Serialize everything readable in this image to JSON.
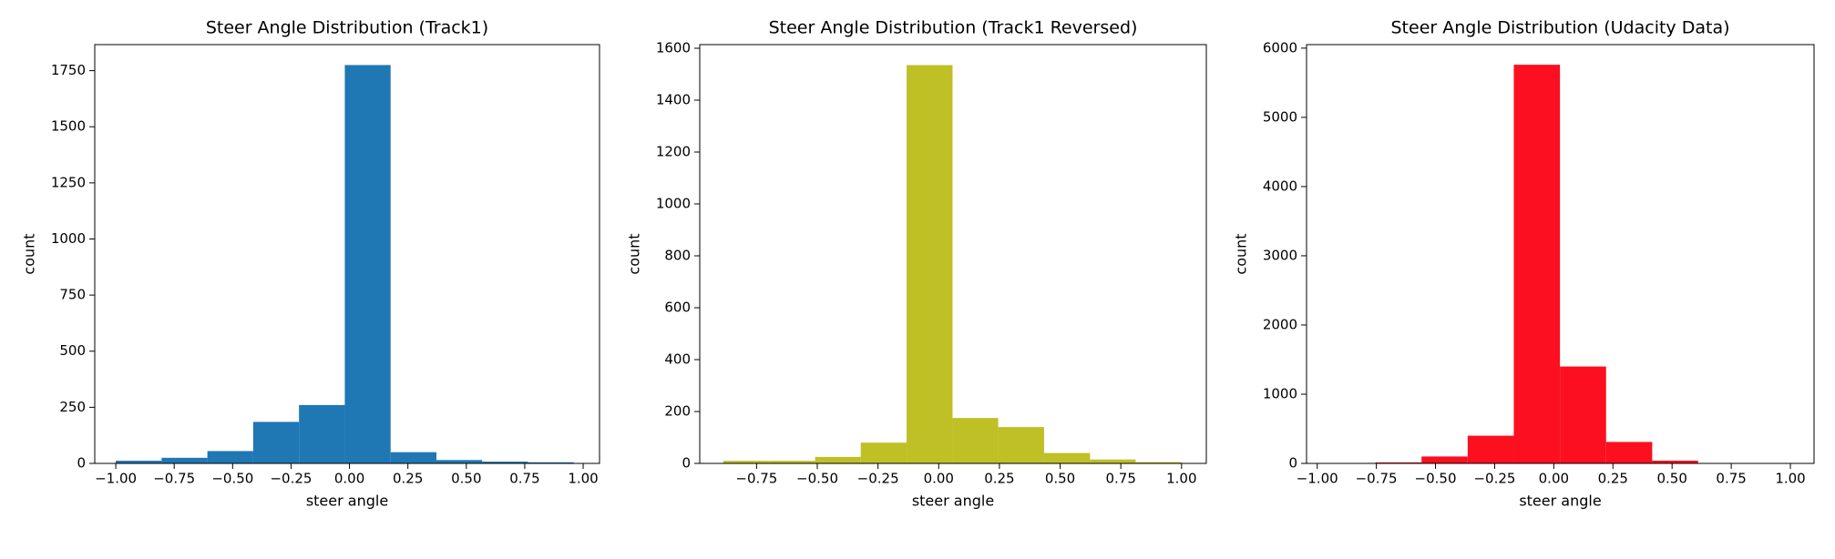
{
  "chart_data": [
    {
      "type": "histogram",
      "title": "Steer Angle Distribution (Track1)",
      "xlabel": "steer angle",
      "ylabel": "count",
      "color": "#1f77b4",
      "bins": [
        -1.0,
        -0.804,
        -0.608,
        -0.412,
        -0.216,
        -0.02,
        0.176,
        0.372,
        0.568,
        0.764,
        0.96
      ],
      "values": [
        12,
        25,
        55,
        185,
        260,
        1775,
        50,
        15,
        8,
        5
      ],
      "xlim": [
        -1.09,
        1.07
      ],
      "ylim": [
        0,
        1866
      ],
      "xticks": [
        {
          "value": -1.0,
          "label": "−1.00"
        },
        {
          "value": -0.75,
          "label": "−0.75"
        },
        {
          "value": -0.5,
          "label": "−0.50"
        },
        {
          "value": -0.25,
          "label": "−0.25"
        },
        {
          "value": 0,
          "label": "0.00"
        },
        {
          "value": 0.25,
          "label": "0.25"
        },
        {
          "value": 0.5,
          "label": "0.50"
        },
        {
          "value": 0.75,
          "label": "0.75"
        },
        {
          "value": 1.0,
          "label": "1.00"
        }
      ],
      "yticks": [
        0,
        250,
        500,
        750,
        1000,
        1250,
        1500,
        1750
      ]
    },
    {
      "type": "histogram",
      "title": "Steer Angle Distribution (Track1 Reversed)",
      "xlabel": "steer angle",
      "ylabel": "count",
      "color": "#bfbf26",
      "bins": [
        -0.887,
        -0.698,
        -0.509,
        -0.321,
        -0.132,
        0.057,
        0.245,
        0.434,
        0.623,
        0.811,
        1.0
      ],
      "values": [
        10,
        10,
        25,
        80,
        1535,
        175,
        140,
        40,
        15,
        5
      ],
      "xlim": [
        -0.984,
        1.102
      ],
      "ylim": [
        0,
        1614
      ],
      "xticks": [
        {
          "value": -0.75,
          "label": "−0.75"
        },
        {
          "value": -0.5,
          "label": "−0.50"
        },
        {
          "value": -0.25,
          "label": "−0.25"
        },
        {
          "value": 0,
          "label": "0.00"
        },
        {
          "value": 0.25,
          "label": "0.25"
        },
        {
          "value": 0.5,
          "label": "0.50"
        },
        {
          "value": 0.75,
          "label": "0.75"
        },
        {
          "value": 1.0,
          "label": "1.00"
        }
      ],
      "yticks": [
        0,
        200,
        400,
        600,
        800,
        1000,
        1200,
        1400,
        1600
      ]
    },
    {
      "type": "histogram",
      "title": "Steer Angle Distribution (Udacity Data)",
      "xlabel": "steer angle",
      "ylabel": "count",
      "color": "#fc0f1e",
      "bins": [
        -0.949,
        -0.754,
        -0.559,
        -0.364,
        -0.169,
        0.026,
        0.221,
        0.416,
        0.61,
        0.805,
        1.0
      ],
      "values": [
        0,
        15,
        100,
        400,
        5760,
        1400,
        310,
        40,
        2,
        1
      ],
      "xlim": [
        -1.045,
        1.1
      ],
      "ylim": [
        0,
        6051
      ],
      "xticks": [
        {
          "value": -1.0,
          "label": "−1.00"
        },
        {
          "value": -0.75,
          "label": "−0.75"
        },
        {
          "value": -0.5,
          "label": "−0.50"
        },
        {
          "value": -0.25,
          "label": "−0.25"
        },
        {
          "value": 0,
          "label": "0.00"
        },
        {
          "value": 0.25,
          "label": "0.25"
        },
        {
          "value": 0.5,
          "label": "0.50"
        },
        {
          "value": 0.75,
          "label": "0.75"
        },
        {
          "value": 1.0,
          "label": "1.00"
        }
      ],
      "yticks": [
        0,
        1000,
        2000,
        3000,
        4000,
        5000,
        6000
      ]
    }
  ]
}
